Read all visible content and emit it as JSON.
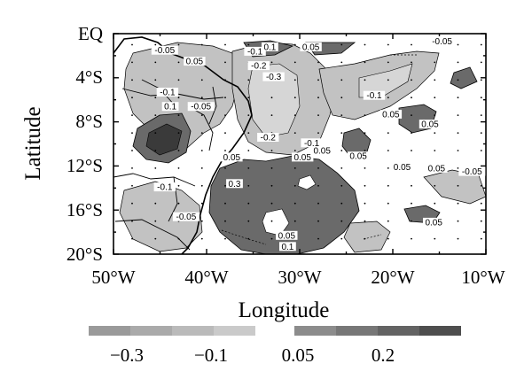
{
  "chart_data": {
    "type": "heatmap",
    "xlabel": "Longitude",
    "ylabel": "Latitude",
    "x_ticks": [
      "50°W",
      "40°W",
      "30°W",
      "20°W",
      "10°W"
    ],
    "y_ticks": [
      "EQ",
      "4°S",
      "8°S",
      "12°S",
      "16°S",
      "20°S"
    ],
    "xlim": [
      -50,
      -10
    ],
    "ylim": [
      -20,
      0
    ],
    "contour_labels": [
      {
        "text": "-0.05",
        "lon": -44.5,
        "lat": -1.5
      },
      {
        "text": "0.05",
        "lon": -41.3,
        "lat": -2.5
      },
      {
        "text": "-0.1",
        "lon": -44.2,
        "lat": -5.3
      },
      {
        "text": "0.1",
        "lon": -43.9,
        "lat": -6.6
      },
      {
        "text": "-0.05",
        "lon": -40.6,
        "lat": -6.6
      },
      {
        "text": "0.05",
        "lon": -37.3,
        "lat": -11.2
      },
      {
        "text": "0.3",
        "lon": -37.0,
        "lat": -13.6
      },
      {
        "text": "-0.1",
        "lon": -44.5,
        "lat": -13.9
      },
      {
        "text": "-0.05",
        "lon": -42.2,
        "lat": -16.6
      },
      {
        "text": "-0.1",
        "lon": -34.8,
        "lat": -1.6
      },
      {
        "text": "0.1",
        "lon": -33.2,
        "lat": -1.2
      },
      {
        "text": "0.05",
        "lon": -28.8,
        "lat": -1.2
      },
      {
        "text": "-0.2",
        "lon": -34.4,
        "lat": -2.9
      },
      {
        "text": "-0.3",
        "lon": -32.8,
        "lat": -3.9
      },
      {
        "text": "-0.2",
        "lon": -33.4,
        "lat": -9.4
      },
      {
        "text": "-0.1",
        "lon": -28.7,
        "lat": -9.9
      },
      {
        "text": "0.05",
        "lon": -27.6,
        "lat": -10.6
      },
      {
        "text": "0.05",
        "lon": -29.7,
        "lat": -11.2
      },
      {
        "text": "0.05",
        "lon": -23.7,
        "lat": -11.1
      },
      {
        "text": "-0.05",
        "lon": -14.7,
        "lat": -0.7
      },
      {
        "text": "-0.1",
        "lon": -22.0,
        "lat": -5.6
      },
      {
        "text": "0.05",
        "lon": -20.2,
        "lat": -7.3
      },
      {
        "text": "0.05",
        "lon": -16.0,
        "lat": -8.2
      },
      {
        "text": "0.05",
        "lon": -19.0,
        "lat": -12.1
      },
      {
        "text": "0.05",
        "lon": -15.3,
        "lat": -12.2
      },
      {
        "text": "-0.05",
        "lon": -11.5,
        "lat": -12.5
      },
      {
        "text": "0.05",
        "lon": -15.6,
        "lat": -17.1
      },
      {
        "text": "0.05",
        "lon": -31.4,
        "lat": -18.3
      },
      {
        "text": "0.1",
        "lon": -31.3,
        "lat": -19.3
      }
    ],
    "colorbar": {
      "negative_ticks": [
        "−0.3",
        "−0.1"
      ],
      "positive_ticks": [
        "0.05",
        "0.2"
      ],
      "negative_colors": [
        "#9a9a9a",
        "#aaaaaa",
        "#bababa",
        "#cacaca"
      ],
      "positive_colors": [
        "#8c8c8c",
        "#777777",
        "#636363",
        "#4e4e4e"
      ]
    },
    "fill_colors": {
      "positive": "#6c6c6c",
      "negative": "#c0c0c0",
      "ocean": "#ffffff",
      "land_line": "#000000"
    },
    "grid": "dotted",
    "legend_position": "bottom"
  }
}
